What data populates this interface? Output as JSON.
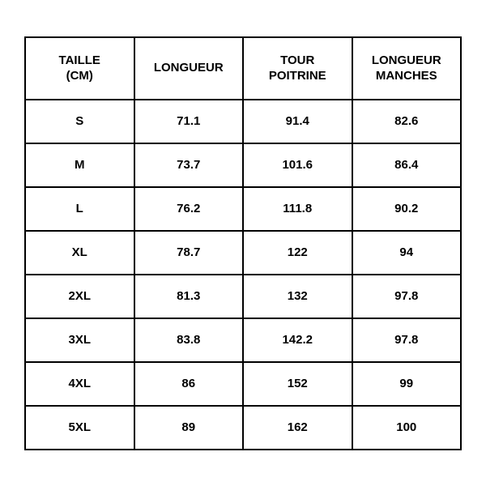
{
  "table": {
    "type": "table",
    "columns": [
      {
        "label_line1": "TAILLE",
        "label_line2": "(CM)"
      },
      {
        "label_line1": "LONGUEUR",
        "label_line2": ""
      },
      {
        "label_line1": "TOUR",
        "label_line2": "POITRINE"
      },
      {
        "label_line1": "LONGUEUR",
        "label_line2": "MANCHES"
      }
    ],
    "rows": [
      {
        "size": "S",
        "length": "71.1",
        "chest": "91.4",
        "sleeve": "82.6"
      },
      {
        "size": "M",
        "length": "73.7",
        "chest": "101.6",
        "sleeve": "86.4"
      },
      {
        "size": "L",
        "length": "76.2",
        "chest": "111.8",
        "sleeve": "90.2"
      },
      {
        "size": "XL",
        "length": "78.7",
        "chest": "122",
        "sleeve": "94"
      },
      {
        "size": "2XL",
        "length": "81.3",
        "chest": "132",
        "sleeve": "97.8"
      },
      {
        "size": "3XL",
        "length": "83.8",
        "chest": "142.2",
        "sleeve": "97.8"
      },
      {
        "size": "4XL",
        "length": "86",
        "chest": "152",
        "sleeve": "99"
      },
      {
        "size": "5XL",
        "length": "89",
        "chest": "162",
        "sleeve": "100"
      }
    ],
    "border_color": "#000000",
    "background_color": "#ffffff",
    "text_color": "#000000",
    "font_weight": 700,
    "header_fontsize": 15,
    "cell_fontsize": 15,
    "border_width": 2,
    "column_widths_pct": [
      25,
      25,
      25,
      25
    ]
  }
}
